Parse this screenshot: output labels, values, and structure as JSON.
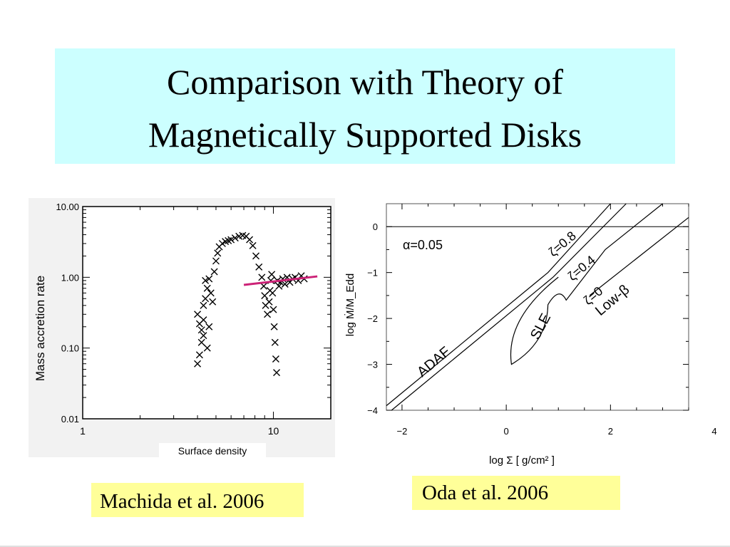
{
  "slide": {
    "title_line1": "Comparison with Theory of",
    "title_line2": "Magnetically Supported Disks",
    "caption_left": "Machida et al. 2006",
    "caption_right": "Oda et al. 2006"
  },
  "chart_data": [
    {
      "type": "scatter",
      "title": "",
      "xlabel": "Surface density",
      "ylabel": "Mass accretion rate",
      "xscale": "log",
      "yscale": "log",
      "xlim": [
        1,
        20
      ],
      "ylim": [
        0.01,
        10
      ],
      "xticks": [
        "1",
        "10"
      ],
      "yticks": [
        "10.00",
        "1.00",
        "0.10",
        "0.01"
      ],
      "marker": "x",
      "series": [
        {
          "points": [
            [
              4.0,
              0.06
            ],
            [
              4.1,
              0.08
            ],
            [
              4.2,
              0.12
            ],
            [
              4.2,
              0.18
            ],
            [
              4.3,
              0.25
            ],
            [
              4.0,
              0.3
            ],
            [
              4.1,
              0.22
            ],
            [
              4.3,
              0.4
            ],
            [
              4.4,
              0.5
            ],
            [
              4.5,
              0.7
            ],
            [
              4.4,
              0.9
            ],
            [
              4.6,
              0.95
            ],
            [
              4.7,
              0.6
            ],
            [
              4.3,
              0.15
            ],
            [
              4.5,
              0.1
            ],
            [
              4.6,
              0.2
            ],
            [
              4.8,
              0.45
            ],
            [
              4.9,
              1.2
            ],
            [
              5.0,
              1.7
            ],
            [
              5.1,
              2.2
            ],
            [
              5.2,
              2.7
            ],
            [
              5.4,
              3.0
            ],
            [
              5.6,
              3.2
            ],
            [
              5.8,
              3.3
            ],
            [
              6.0,
              3.4
            ],
            [
              6.3,
              3.6
            ],
            [
              6.6,
              3.8
            ],
            [
              6.9,
              3.9
            ],
            [
              7.2,
              3.8
            ],
            [
              7.5,
              3.4
            ],
            [
              7.8,
              2.8
            ],
            [
              8.1,
              2.0
            ],
            [
              8.4,
              1.4
            ],
            [
              8.7,
              1.0
            ],
            [
              8.9,
              0.75
            ],
            [
              9.0,
              0.55
            ],
            [
              9.1,
              0.4
            ],
            [
              9.3,
              0.3
            ],
            [
              9.5,
              0.45
            ],
            [
              9.6,
              0.65
            ],
            [
              9.7,
              0.9
            ],
            [
              9.8,
              1.1
            ],
            [
              9.9,
              0.6
            ],
            [
              10.0,
              0.35
            ],
            [
              10.1,
              0.2
            ],
            [
              10.2,
              0.12
            ],
            [
              10.3,
              0.07
            ],
            [
              10.4,
              0.045
            ],
            [
              10.5,
              0.9
            ],
            [
              10.7,
              0.75
            ],
            [
              10.9,
              0.85
            ],
            [
              11.2,
              0.95
            ],
            [
              11.5,
              0.8
            ],
            [
              11.8,
              1.0
            ],
            [
              12.2,
              0.85
            ],
            [
              12.6,
              0.95
            ],
            [
              13.0,
              1.0
            ],
            [
              13.5,
              0.9
            ],
            [
              14.0,
              1.05
            ],
            [
              14.5,
              0.95
            ]
          ]
        }
      ],
      "fit_line": {
        "color": "#cc2277",
        "x": [
          7.0,
          17.0
        ],
        "y": [
          0.78,
          1.03
        ]
      }
    },
    {
      "type": "line",
      "title": "",
      "xlabel": "log Σ [ g/cm² ]",
      "ylabel": "log Ṁ/M_Edd",
      "xlim": [
        -2.3,
        3.5
      ],
      "ylim": [
        -4.0,
        0.5
      ],
      "xticks": [
        "−2",
        "0",
        "2",
        "4"
      ],
      "yticks": [
        "0",
        "−1",
        "−2",
        "−3",
        "−4"
      ],
      "annotations": [
        "α=0.05",
        "ζ=0.8",
        "ζ=0.4",
        "ζ=0",
        "Low-β",
        "SLE",
        "ADAF"
      ],
      "series": [
        {
          "points": [
            [
              -2.2,
              -4.0
            ],
            [
              0.9,
              -1.1
            ],
            [
              2.3,
              0.5
            ]
          ]
        },
        {
          "points": [
            [
              -2.3,
              -3.9
            ],
            [
              0.8,
              -1.0
            ],
            [
              2.0,
              0.5
            ]
          ]
        },
        {
          "points": [
            [
              1.0,
              -1.1
            ],
            [
              0.25,
              -2.95
            ],
            [
              0.1,
              -3.0
            ],
            [
              0.8,
              -1.7
            ],
            [
              1.15,
              -1.6
            ],
            [
              1.9,
              -0.5
            ],
            [
              3.0,
              0.5
            ]
          ]
        },
        {
          "points": [
            [
              1.6,
              -1.5
            ],
            [
              3.5,
              0.2
            ]
          ]
        }
      ]
    }
  ]
}
